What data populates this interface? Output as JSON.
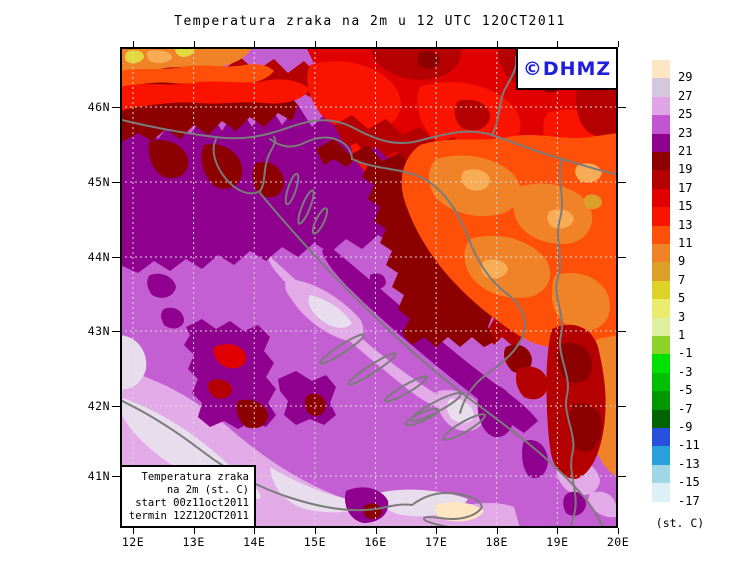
{
  "title": "Temperatura zraka na 2m u 12 UTC 12OCT2011",
  "logo": {
    "text": "©DHMZ",
    "color": "#1e1edc"
  },
  "axes": {
    "lat_labels": [
      "46N",
      "45N",
      "44N",
      "43N",
      "42N",
      "41N"
    ],
    "lon_labels": [
      "12E",
      "13E",
      "14E",
      "15E",
      "16E",
      "17E",
      "18E",
      "19E",
      "20E"
    ]
  },
  "info_box": {
    "lines": [
      "Temperatura zraka",
      "na 2m (st. C)",
      "start 00z11oct2011",
      "termin 12Z12OCT2011"
    ]
  },
  "legend": {
    "unit": "(st. C)",
    "levels": [
      {
        "label": "29",
        "color": "#FFE6C3"
      },
      {
        "label": "27",
        "color": "#D4C8DF"
      },
      {
        "label": "25",
        "color": "#E0A5E6"
      },
      {
        "label": "23",
        "color": "#C355D2"
      },
      {
        "label": "21",
        "color": "#8F008F"
      },
      {
        "label": "19",
        "color": "#8C0000"
      },
      {
        "label": "17",
        "color": "#B40000"
      },
      {
        "label": "15",
        "color": "#E10000"
      },
      {
        "label": "13",
        "color": "#FA1400"
      },
      {
        "label": "11",
        "color": "#FF500A"
      },
      {
        "label": "9",
        "color": "#F08228"
      },
      {
        "label": "7",
        "color": "#DCA028"
      },
      {
        "label": "5",
        "color": "#DCD228"
      },
      {
        "label": "3",
        "color": "#EBEB6E"
      },
      {
        "label": "1",
        "color": "#DCF0A0"
      },
      {
        "label": "-1",
        "color": "#8CD228"
      },
      {
        "label": "-3",
        "color": "#00E100"
      },
      {
        "label": "-5",
        "color": "#00BE00"
      },
      {
        "label": "-7",
        "color": "#009600"
      },
      {
        "label": "-9",
        "color": "#006400"
      },
      {
        "label": "-11",
        "color": "#2850DC"
      },
      {
        "label": "-13",
        "color": "#28A0DC"
      },
      {
        "label": "-15",
        "color": "#A0D7E6"
      },
      {
        "label": "-17",
        "color": "#DCF0F5"
      }
    ]
  },
  "map": {
    "palette": {
      "medium-orchid": "#C35FD2",
      "light-orchid": "#E2ABE8",
      "pale-lavender": "#E7DDEC",
      "cream": "#FFE6C3",
      "dark-purple": "#8F008F",
      "maroon": "#8C0000",
      "dark-red": "#B40000",
      "red": "#E10000",
      "bright-red": "#FA1400",
      "vermilion": "#FF500A",
      "orange": "#F08228",
      "light-orange": "#F8AC55",
      "goldenrod": "#DCA028",
      "yellow": "#E3D93F"
    }
  }
}
